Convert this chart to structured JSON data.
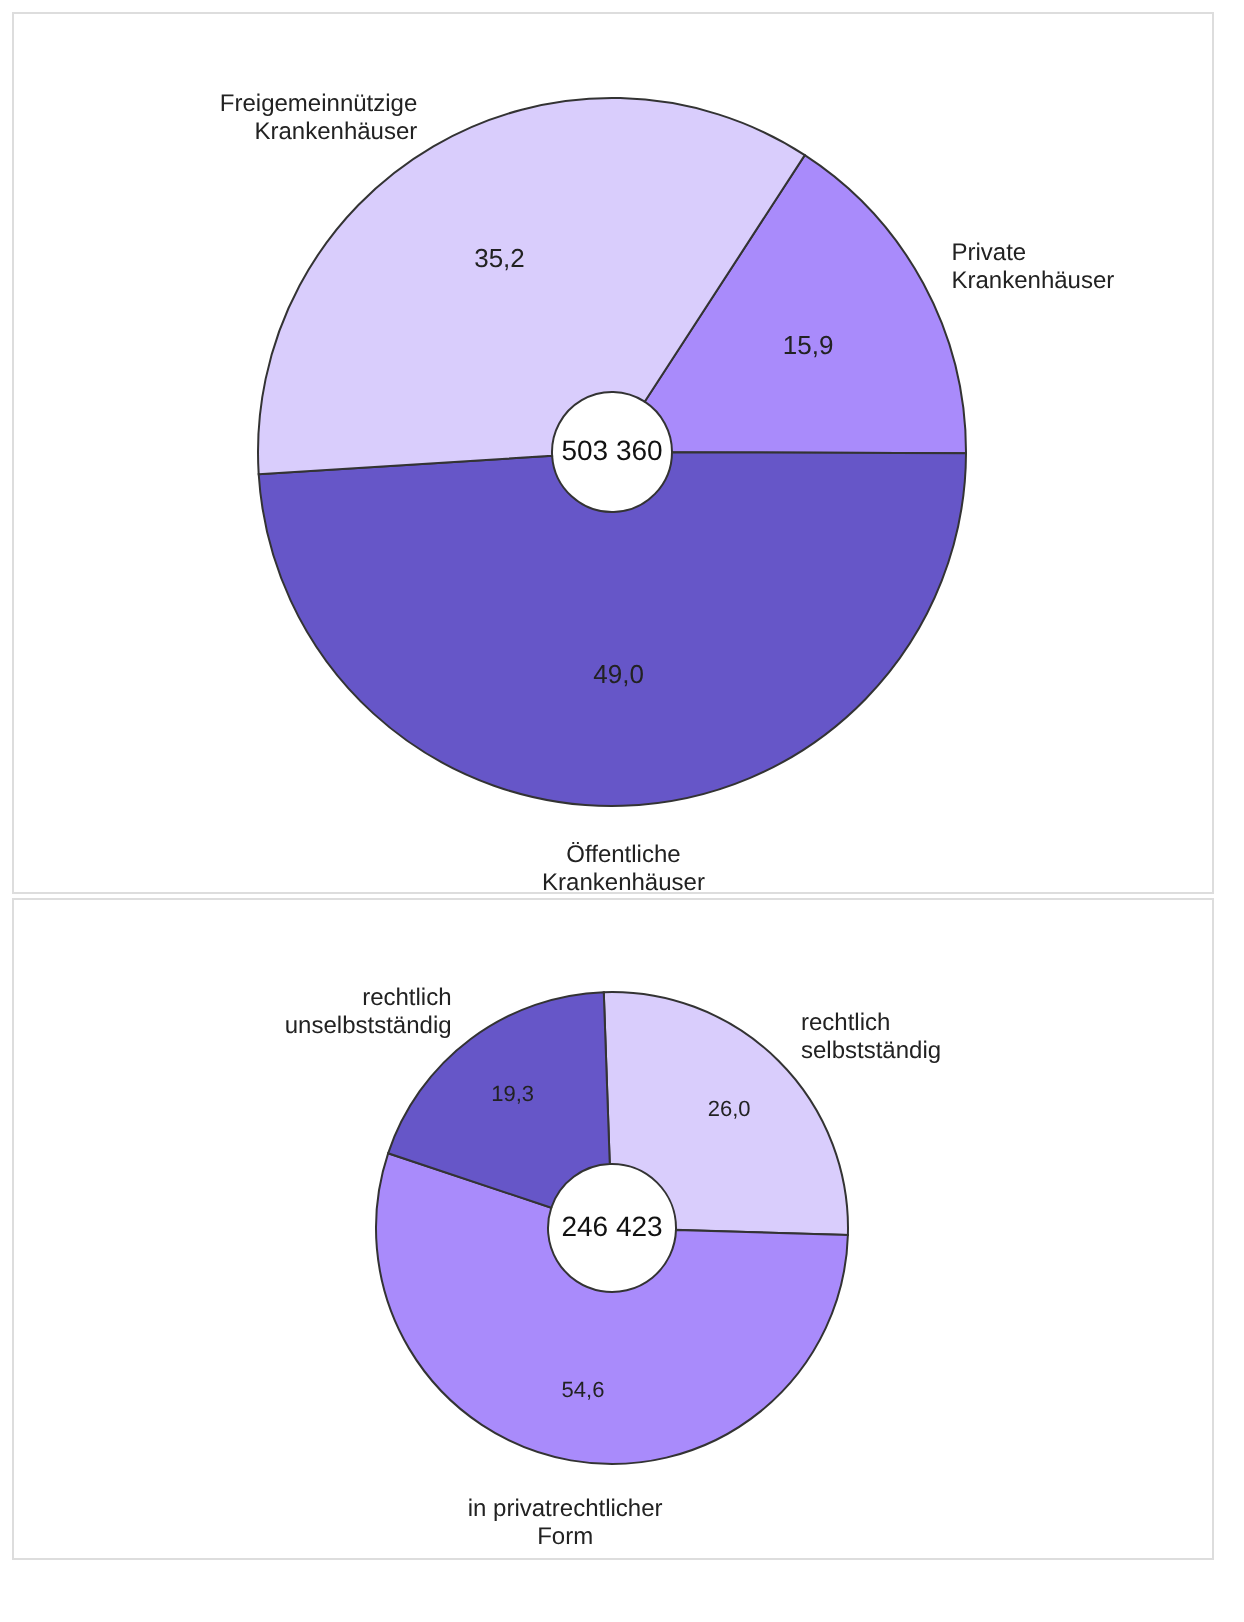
{
  "chart_data": [
    {
      "type": "donut",
      "categories": [
        "Private Krankenhäuser",
        "Öffentliche Krankenhäuser",
        "Freigemeinnützige Krankenhäuser"
      ],
      "values": [
        15.9,
        49.0,
        35.2
      ],
      "value_labels": [
        "15,9",
        "49,0",
        "35,2"
      ],
      "colors": [
        "#a98bfb",
        "#6656c8",
        "#d9cdfc"
      ],
      "annotations": [
        "503 360"
      ]
    },
    {
      "type": "donut",
      "categories": [
        "rechtlich selbstständig",
        "in privatrechtlicher Form",
        "rechtlich unselbstständig"
      ],
      "values": [
        26.0,
        54.6,
        19.3
      ],
      "value_labels": [
        "26,0",
        "54,6",
        "19,3"
      ],
      "colors": [
        "#d9cdfc",
        "#a98bfb",
        "#6656c8"
      ],
      "annotations": [
        "246 423"
      ]
    }
  ]
}
